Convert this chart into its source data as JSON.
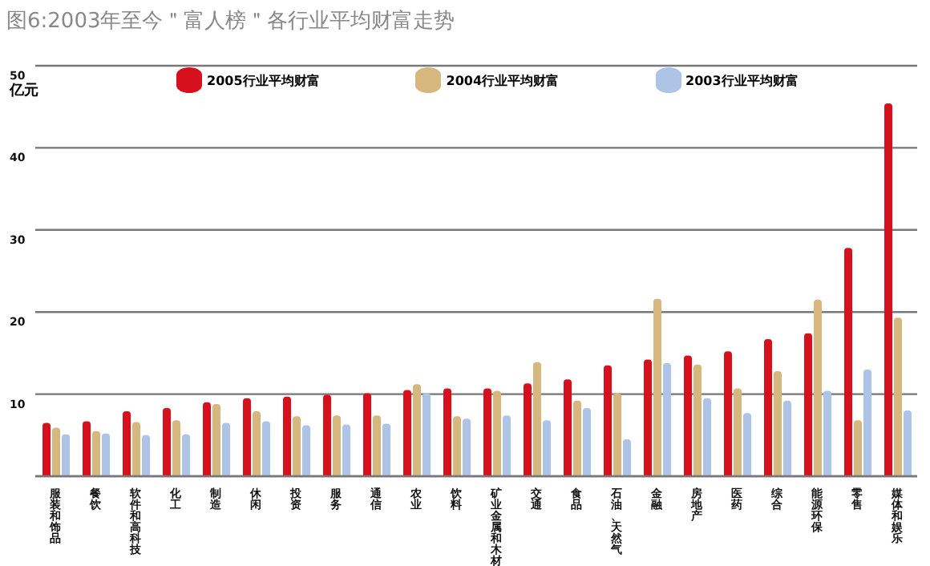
{
  "chart_data": {
    "type": "bar",
    "title": "图6:2003年至今＂富人榜＂各行业平均财富走势",
    "ylabel": "亿元",
    "categories": [
      "服装和饰品",
      "餐饮",
      "软件和高科技",
      "化工",
      "制造",
      "休闲",
      "投资",
      "服务",
      "通信",
      "农业",
      "饮料",
      "矿业金属和木材",
      "交通",
      "食品",
      "石油、天然气",
      "金融",
      "房地产",
      "医药",
      "综合",
      "能源环保",
      "零售",
      "媒体和娱乐"
    ],
    "series": [
      {
        "name": "2005行业平均财富",
        "color": "#d7101e",
        "values": [
          6.5,
          6.7,
          7.9,
          8.3,
          9.0,
          9.5,
          9.7,
          9.9,
          10.1,
          10.5,
          10.7,
          10.7,
          11.3,
          11.8,
          13.5,
          14.2,
          14.7,
          15.2,
          16.7,
          17.4,
          27.8,
          45.4
        ]
      },
      {
        "name": "2004行业平均财富",
        "color": "#d6b77e",
        "values": [
          5.9,
          5.5,
          6.6,
          6.8,
          8.8,
          7.9,
          7.3,
          7.4,
          7.4,
          11.2,
          7.3,
          10.4,
          13.9,
          9.2,
          10.1,
          21.6,
          13.6,
          10.7,
          12.8,
          21.5,
          6.8,
          19.3
        ]
      },
      {
        "name": "2003行业平均财富",
        "color": "#adc4e6",
        "values": [
          5.1,
          5.2,
          5.0,
          5.1,
          6.5,
          6.7,
          6.2,
          6.3,
          6.4,
          10.1,
          7.0,
          7.4,
          6.8,
          8.3,
          4.5,
          13.8,
          9.5,
          7.7,
          9.2,
          10.4,
          13.0,
          8.0
        ]
      }
    ],
    "ylim": [
      0,
      50
    ],
    "yticks": [
      10,
      20,
      30,
      40,
      50
    ],
    "grid": "y",
    "legend": "top"
  }
}
